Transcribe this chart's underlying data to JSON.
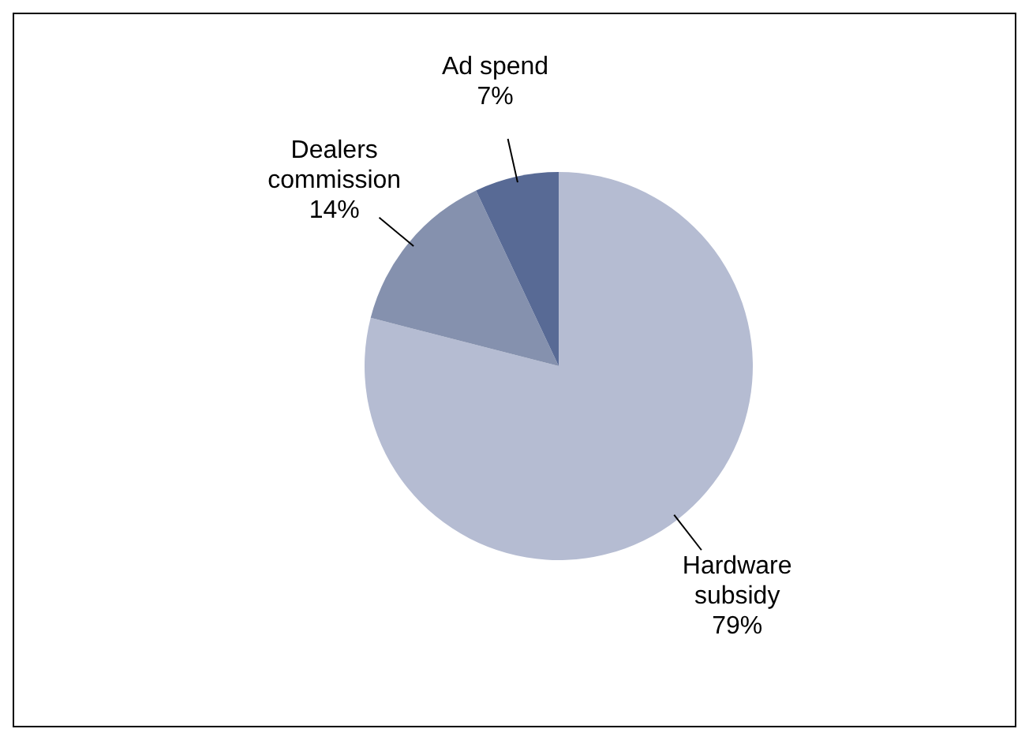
{
  "chart_data": {
    "type": "pie",
    "categories": [
      "Hardware subsidy",
      "Dealers commission",
      "Ad spend"
    ],
    "values": [
      79,
      14,
      7
    ],
    "colors": [
      "#b5bcd2",
      "#8591ae",
      "#586a95"
    ],
    "value_labels": [
      "79%",
      "14%",
      "7%"
    ]
  }
}
